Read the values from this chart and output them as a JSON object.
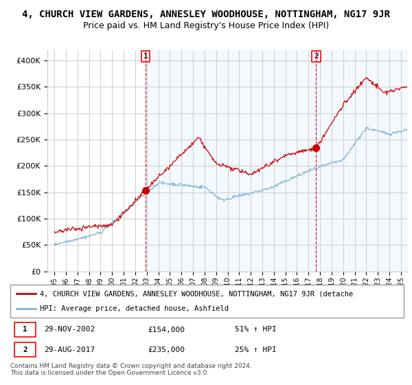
{
  "title": "4, CHURCH VIEW GARDENS, ANNESLEY WOODHOUSE, NOTTINGHAM, NG17 9JR",
  "subtitle": "Price paid vs. HM Land Registry's House Price Index (HPI)",
  "ylim": [
    0,
    420000
  ],
  "yticks": [
    0,
    50000,
    100000,
    150000,
    200000,
    250000,
    300000,
    350000,
    400000
  ],
  "ytick_labels": [
    "£0",
    "£50K",
    "£100K",
    "£150K",
    "£200K",
    "£250K",
    "£300K",
    "£350K",
    "£400K"
  ],
  "sale1_date": 2002.91,
  "sale1_price": 154000,
  "sale1_label": "1",
  "sale2_date": 2017.66,
  "sale2_price": 235000,
  "sale2_label": "2",
  "legend_line1": "4, CHURCH VIEW GARDENS, ANNESLEY WOODHOUSE, NOTTINGHAM, NG17 9JR (detache",
  "legend_line2": "HPI: Average price, detached house, Ashfield",
  "footer": "Contains HM Land Registry data © Crown copyright and database right 2024.\nThis data is licensed under the Open Government Licence v3.0.",
  "property_color": "#cc0000",
  "hpi_color": "#7fb3d3",
  "shade_color": "#ddeeff",
  "grid_color": "#cccccc",
  "title_fontsize": 10,
  "subtitle_fontsize": 9,
  "xstart": 1995,
  "xend": 2025,
  "shade_alpha": 0.35
}
